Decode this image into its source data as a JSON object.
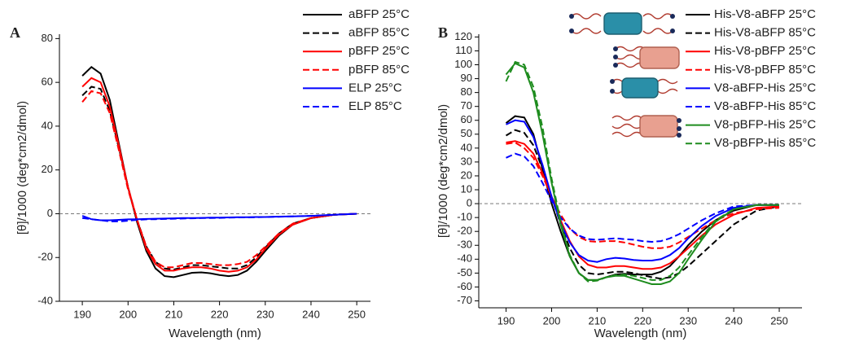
{
  "chart_data": [
    {
      "type": "line",
      "panel_label": "A",
      "xlabel": "Wavelength (nm)",
      "ylabel": "[θ]/1000 (deg*cm2/dmol)",
      "xlim": [
        185,
        253
      ],
      "ylim": [
        -40,
        82
      ],
      "xticks": [
        190,
        200,
        210,
        220,
        230,
        240,
        250
      ],
      "yticks": [
        -40,
        -20,
        0,
        20,
        40,
        60,
        80
      ],
      "hline": 0,
      "legend": "upper right",
      "x": [
        190,
        192,
        194,
        196,
        198,
        200,
        202,
        204,
        206,
        208,
        210,
        212,
        214,
        216,
        218,
        220,
        222,
        224,
        226,
        228,
        230,
        233,
        236,
        240,
        245,
        250
      ],
      "series": [
        {
          "name": "aBFP 25°C",
          "color": "#000000",
          "dash": false,
          "values": [
            63,
            67,
            64,
            52,
            32,
            12,
            -4,
            -17,
            -25,
            -28.5,
            -29,
            -28,
            -27,
            -26.8,
            -27.2,
            -28,
            -28.5,
            -28,
            -26,
            -22,
            -17,
            -10,
            -5,
            -2,
            -0.5,
            0
          ]
        },
        {
          "name": "aBFP 85°C",
          "color": "#000000",
          "dash": true,
          "values": [
            54,
            58,
            57,
            47,
            30,
            12,
            -3,
            -15,
            -22,
            -25,
            -25.5,
            -24.5,
            -23.5,
            -23.5,
            -24,
            -24.5,
            -25,
            -25,
            -23.5,
            -20,
            -15.5,
            -9,
            -4.5,
            -2,
            -0.5,
            0
          ]
        },
        {
          "name": "pBFP 25°C",
          "color": "#ff0000",
          "dash": false,
          "values": [
            58,
            62,
            60,
            49,
            31,
            12,
            -3,
            -16,
            -23,
            -26,
            -26,
            -25,
            -24.5,
            -24.5,
            -25,
            -26,
            -26.5,
            -26,
            -24.5,
            -21,
            -16,
            -9.5,
            -5,
            -2,
            -0.5,
            0
          ]
        },
        {
          "name": "pBFP 85°C",
          "color": "#ff0000",
          "dash": true,
          "values": [
            51,
            56,
            55,
            46,
            29,
            11,
            -3,
            -15,
            -22,
            -24.5,
            -24.5,
            -23.5,
            -22.5,
            -22.5,
            -23,
            -23.5,
            -23.5,
            -23,
            -22,
            -19,
            -15,
            -9,
            -4.5,
            -2,
            -0.5,
            0
          ]
        },
        {
          "name": "ELP 25°C",
          "color": "#0000ff",
          "dash": false,
          "values": [
            -1,
            -2.5,
            -3,
            -3,
            -2.8,
            -2.6,
            -2.5,
            -2.4,
            -2.3,
            -2.2,
            -2.1,
            -2,
            -2,
            -1.9,
            -1.8,
            -1.8,
            -1.7,
            -1.6,
            -1.6,
            -1.5,
            -1.5,
            -1.3,
            -1.2,
            -1,
            -0.5,
            0
          ]
        },
        {
          "name": "ELP 85°C",
          "color": "#0000ff",
          "dash": true,
          "values": [
            -2,
            -2.5,
            -3,
            -3.5,
            -3.5,
            -3.2,
            -2.8,
            -2.6,
            -2.5,
            -2.4,
            -2.3,
            -2.2,
            -2.1,
            -2,
            -2,
            -1.9,
            -1.8,
            -1.7,
            -1.7,
            -1.6,
            -1.5,
            -1.4,
            -1.2,
            -1,
            -0.5,
            0
          ]
        }
      ]
    },
    {
      "type": "line",
      "panel_label": "B",
      "xlabel": "Wavelength (nm)",
      "ylabel": "[θ]/1000 (deg*cm2/dmol)",
      "xlim": [
        184,
        255
      ],
      "ylim": [
        -75,
        122
      ],
      "xticks": [
        190,
        200,
        210,
        220,
        230,
        240,
        250
      ],
      "yticks": [
        -70,
        -60,
        -50,
        -40,
        -30,
        -20,
        -10,
        0,
        10,
        20,
        30,
        40,
        50,
        60,
        70,
        80,
        90,
        100,
        110,
        120
      ],
      "hline": 0,
      "legend": "upper right",
      "x": [
        190,
        192,
        194,
        196,
        198,
        200,
        202,
        204,
        206,
        208,
        210,
        212,
        214,
        216,
        218,
        220,
        222,
        224,
        226,
        228,
        230,
        233,
        236,
        240,
        245,
        250
      ],
      "series": [
        {
          "name": "His-V8-aBFP 25°C",
          "color": "#000000",
          "dash": false,
          "values": [
            58,
            63,
            62,
            50,
            25,
            0,
            -20,
            -38,
            -50,
            -55,
            -55,
            -53,
            -51,
            -50.5,
            -51,
            -51,
            -51,
            -49,
            -45,
            -38,
            -30,
            -20,
            -12,
            -5,
            -1,
            -1
          ]
        },
        {
          "name": "His-V8-aBFP 85°C",
          "color": "#000000",
          "dash": true,
          "values": [
            49,
            53,
            51,
            42,
            25,
            5,
            -15,
            -32,
            -44,
            -50,
            -51,
            -50,
            -49,
            -49,
            -50,
            -51.5,
            -53,
            -54,
            -53,
            -50,
            -45,
            -36,
            -27,
            -15,
            -5,
            -2
          ]
        },
        {
          "name": "His-V8-pBFP 25°C",
          "color": "#ff0000",
          "dash": false,
          "values": [
            44,
            45,
            43,
            36,
            22,
            5,
            -12,
            -27,
            -38,
            -44,
            -46,
            -46,
            -45,
            -45,
            -46,
            -47,
            -47,
            -46,
            -43,
            -38,
            -32,
            -23,
            -15,
            -8,
            -3,
            -2
          ]
        },
        {
          "name": "His-V8-pBFP 85°C",
          "color": "#ff0000",
          "dash": true,
          "values": [
            43,
            44,
            40,
            33,
            20,
            5,
            -8,
            -18,
            -24,
            -27,
            -27.5,
            -27,
            -27,
            -28,
            -29.5,
            -31,
            -32,
            -32,
            -31,
            -28,
            -24,
            -18,
            -12,
            -7,
            -4,
            -3
          ]
        },
        {
          "name": "V8-aBFP-His 25°C",
          "color": "#0000ff",
          "dash": false,
          "values": [
            57,
            60,
            59,
            48,
            28,
            5,
            -14,
            -28,
            -37,
            -41,
            -42,
            -40,
            -39,
            -39.5,
            -40.5,
            -41,
            -41,
            -40,
            -37,
            -32,
            -25,
            -16,
            -9,
            -3,
            -1,
            -1
          ]
        },
        {
          "name": "V8-aBFP-His 85°C",
          "color": "#0000ff",
          "dash": true,
          "values": [
            33,
            36,
            34,
            27,
            15,
            2,
            -10,
            -18,
            -23,
            -25.5,
            -26,
            -25.5,
            -25,
            -25.5,
            -26,
            -27,
            -27.5,
            -27,
            -25,
            -22,
            -18,
            -12,
            -7,
            -2,
            -1,
            -1
          ]
        },
        {
          "name": "V8-pBFP-His 25°C",
          "color": "#1e8c1e",
          "dash": false,
          "values": [
            93,
            101,
            98,
            80,
            50,
            15,
            -15,
            -38,
            -50,
            -55,
            -55,
            -53,
            -52,
            -52,
            -54,
            -56,
            -58,
            -58,
            -56,
            -50,
            -40,
            -26,
            -13,
            -4,
            -1,
            -1
          ]
        },
        {
          "name": "V8-pBFP-His 85°C",
          "color": "#1e8c1e",
          "dash": true,
          "values": [
            88,
            102,
            100,
            84,
            55,
            18,
            -13,
            -37,
            -50,
            -56,
            -55.5,
            -53,
            -51.5,
            -51,
            -52,
            -53.5,
            -55,
            -55,
            -52,
            -46,
            -37,
            -24,
            -12,
            -4,
            -1,
            -1
          ]
        }
      ]
    }
  ]
}
